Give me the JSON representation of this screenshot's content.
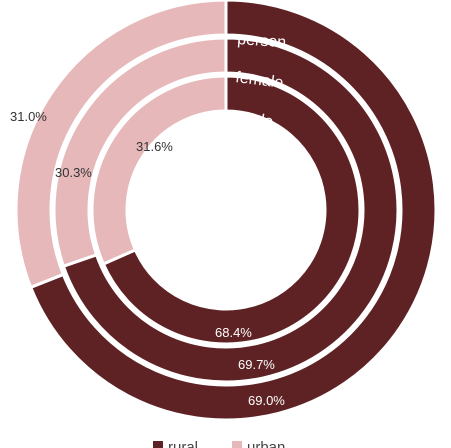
{
  "chart_data": {
    "type": "donut",
    "categories": [
      "rural",
      "urban"
    ],
    "colors": {
      "rural": "#5e2224",
      "urban": "#e6b8b9"
    },
    "rings": [
      {
        "name": "person",
        "values": {
          "rural": 69.0,
          "urban": 31.0
        },
        "labels": {
          "rural": "69.0%",
          "urban": "31.0%"
        }
      },
      {
        "name": "female",
        "values": {
          "rural": 69.7,
          "urban": 30.3
        },
        "labels": {
          "rural": "69.7%",
          "urban": "30.3%"
        }
      },
      {
        "name": "male",
        "values": {
          "rural": 68.4,
          "urban": 31.6
        },
        "labels": {
          "rural": "68.4%",
          "urban": "31.6%"
        }
      }
    ],
    "legend": [
      {
        "label": "rural"
      },
      {
        "label": "urban"
      }
    ],
    "legend_position": "bottom"
  }
}
